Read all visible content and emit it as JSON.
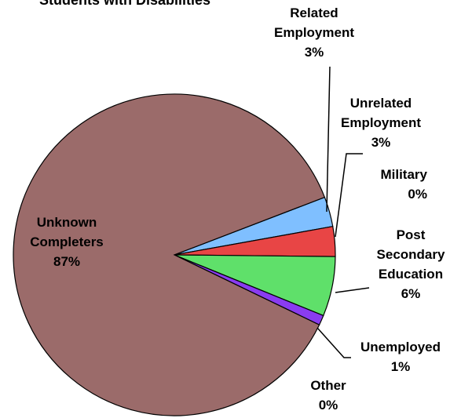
{
  "chart_data": {
    "type": "pie",
    "title": "Students with Disabilities",
    "start_angle_deg": 21,
    "direction": "clockwise",
    "slices": [
      {
        "name": "Related Employment",
        "label_lines": [
          "Related",
          "Employment"
        ],
        "pct_label": "3%",
        "value": 3,
        "color": "#7fbfff"
      },
      {
        "name": "Unrelated Employment",
        "label_lines": [
          "Unrelated",
          "Employment"
        ],
        "pct_label": "3%",
        "value": 3,
        "color": "#e84545"
      },
      {
        "name": "Military",
        "label_lines": [
          "Military"
        ],
        "pct_label": "0%",
        "value": 0,
        "color": "#9ad0a0"
      },
      {
        "name": "Post Secondary Education",
        "label_lines": [
          "Post",
          "Secondary",
          "Education"
        ],
        "pct_label": "6%",
        "value": 6,
        "color": "#5fe06a"
      },
      {
        "name": "Unemployed",
        "label_lines": [
          "Unemployed"
        ],
        "pct_label": "1%",
        "value": 1,
        "color": "#8a3cf0"
      },
      {
        "name": "Other",
        "label_lines": [
          "Other"
        ],
        "pct_label": "0%",
        "value": 0,
        "color": "#c0c0c0"
      },
      {
        "name": "Unknown Completers",
        "label_lines": [
          "Unknown",
          "Completers"
        ],
        "pct_label": "87%",
        "value": 87,
        "color": "#9b6b6a"
      }
    ]
  }
}
